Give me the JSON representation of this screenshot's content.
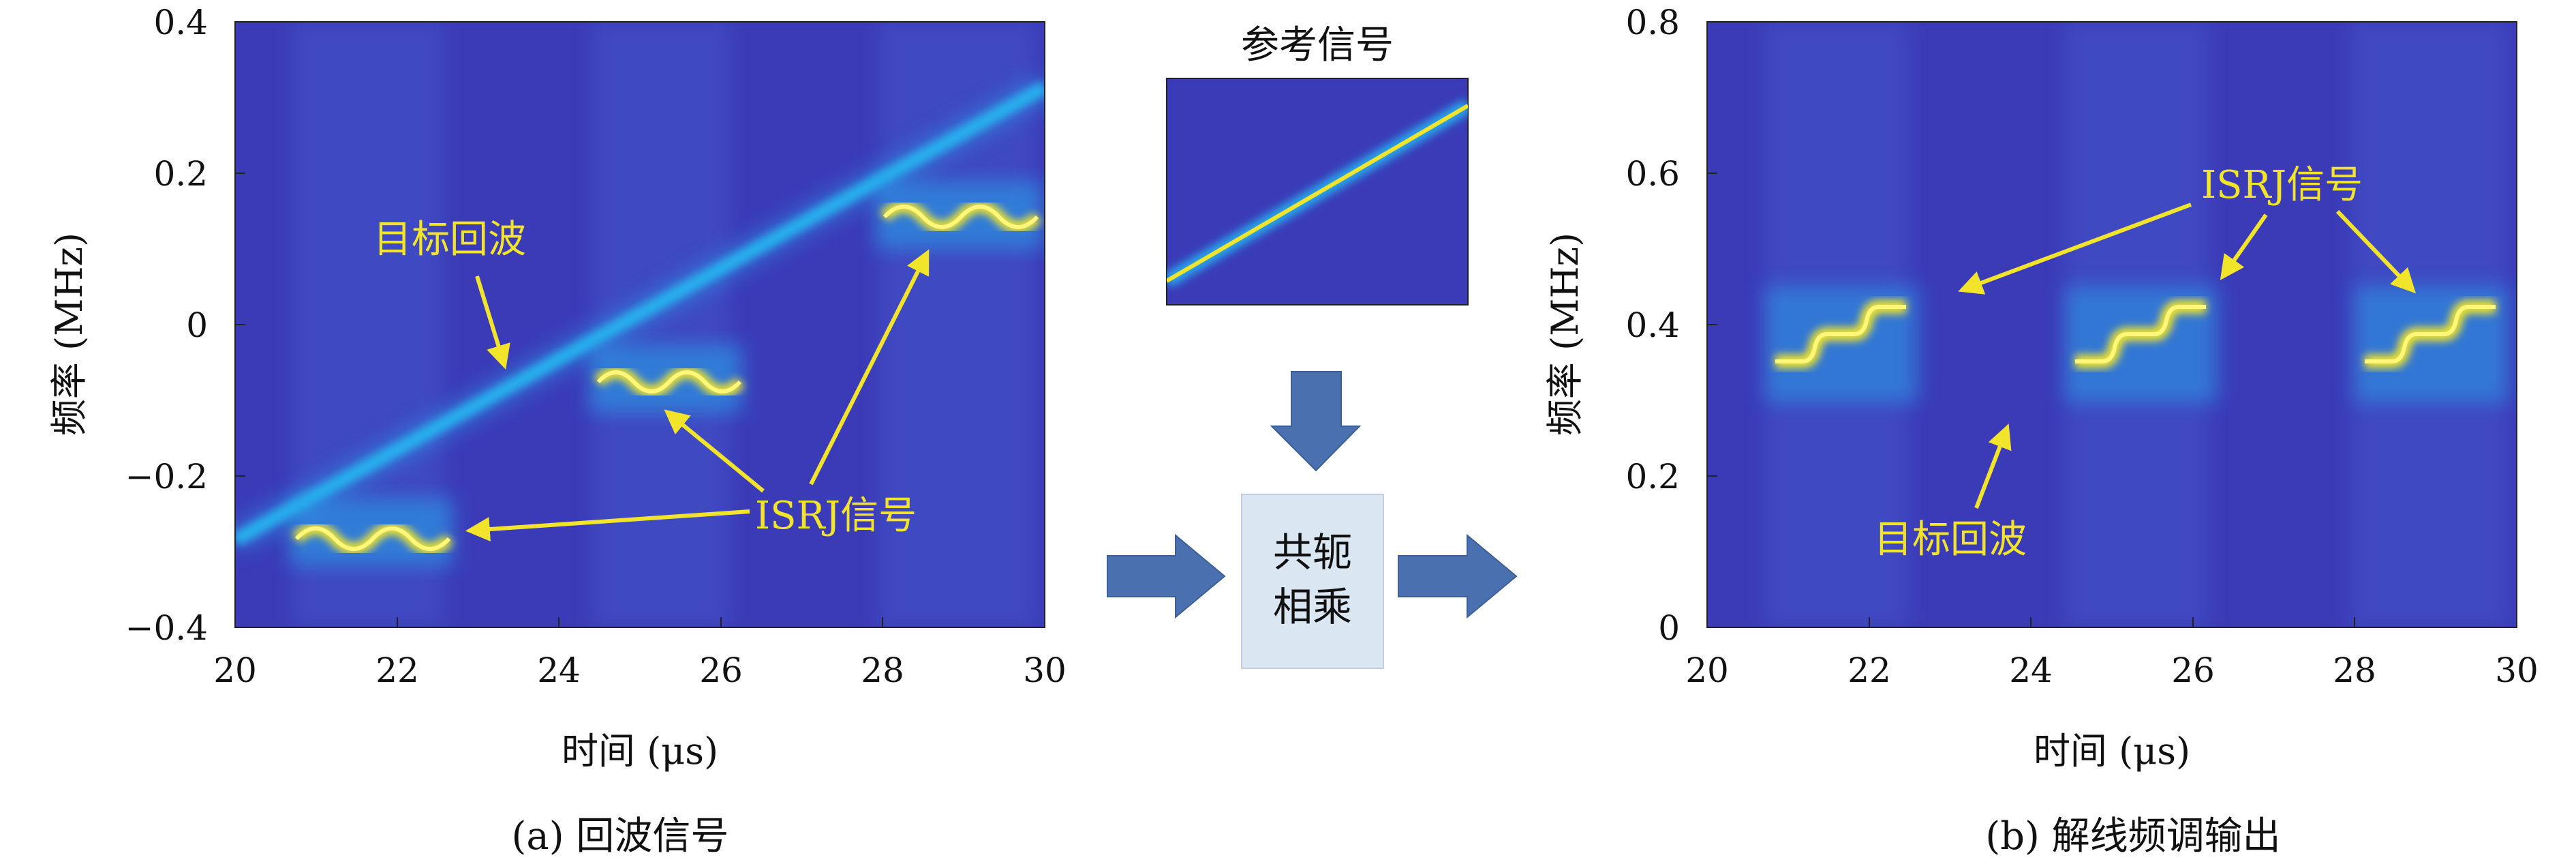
{
  "left_panel": {
    "caption": "(a) 回波信号",
    "xlabel": "时间 (μs)",
    "ylabel": "频率 (MHz)",
    "xticks": [
      "20",
      "22",
      "24",
      "26",
      "28",
      "30"
    ],
    "yticks": [
      "0.4",
      "0.2",
      "0",
      "−0.2",
      "−0.4"
    ],
    "annotations": {
      "target": "目标回波",
      "isrj": "ISRJ信号"
    }
  },
  "middle": {
    "reference_title": "参考信号",
    "process_line1": "共轭",
    "process_line2": "相乘"
  },
  "right_panel": {
    "caption": "(b) 解线频调输出",
    "xlabel": "时间 (μs)",
    "ylabel": "频率 (MHz)",
    "xticks": [
      "20",
      "22",
      "24",
      "26",
      "28",
      "30"
    ],
    "yticks": [
      "0.8",
      "0.6",
      "0.4",
      "0.2",
      "0"
    ],
    "annotations": {
      "target": "目标回波",
      "isrj": "ISRJ信号"
    }
  },
  "colors": {
    "background": "#3b3bb8",
    "trace": "#26a6ea",
    "hot": "#f0e42c",
    "arrow_fill": "#4a70b0",
    "process_box": "#dbe6f3"
  }
}
